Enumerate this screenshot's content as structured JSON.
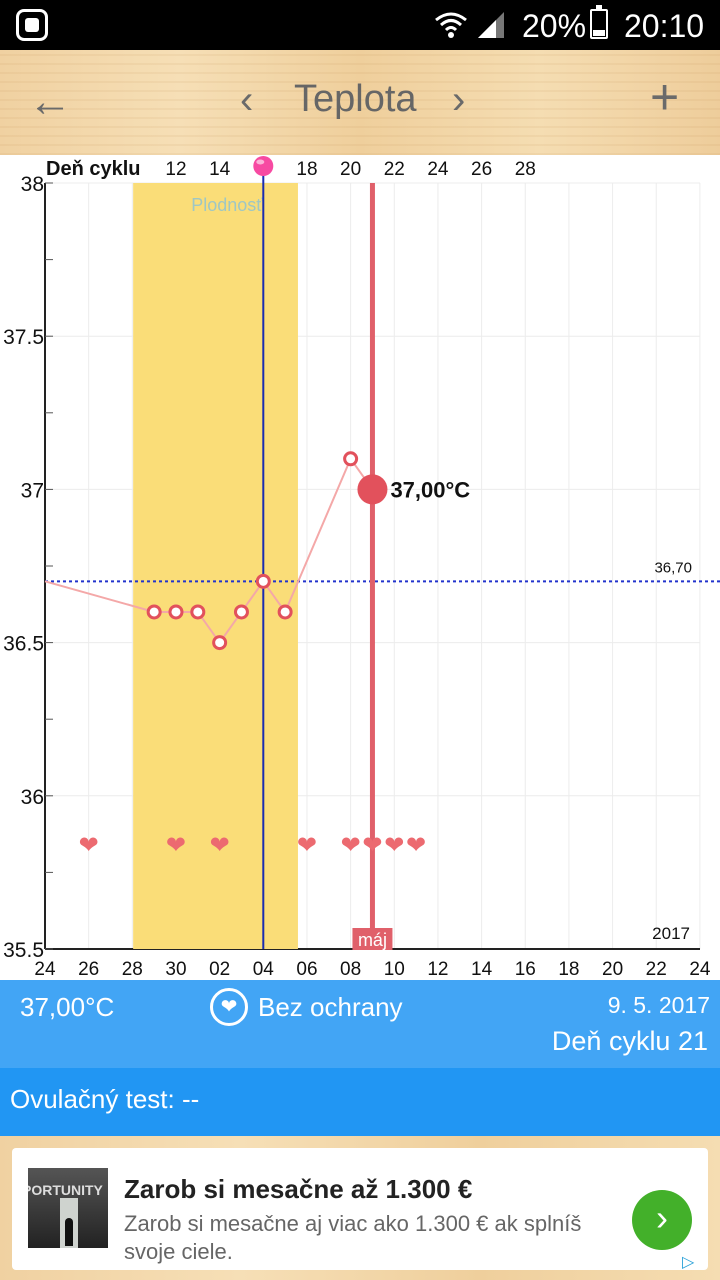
{
  "status_bar": {
    "battery": "20%",
    "time": "20:10"
  },
  "header": {
    "title": "Teplota",
    "back_icon": "arrow-left-icon",
    "prev_icon": "chevron-left-icon",
    "next_icon": "chevron-right-icon",
    "add_icon": "plus-icon"
  },
  "chart_data": {
    "type": "line",
    "top_axis_label": "Deň cyklu",
    "cycle_ticks": [
      "12",
      "14",
      "",
      "18",
      "20",
      "22",
      "24",
      "26",
      "28"
    ],
    "y_ticks": [
      "38",
      "37.5",
      "37",
      "36.5",
      "36",
      "35.5"
    ],
    "ylim": [
      35.5,
      38
    ],
    "x_ticks": [
      "24",
      "26",
      "28",
      "30",
      "02",
      "04",
      "06",
      "08",
      "10",
      "12",
      "14",
      "16",
      "18",
      "20",
      "22",
      "24"
    ],
    "fertile_label": "Plodnosť",
    "coverline_label": "36,70",
    "coverline_value": 36.7,
    "selected_label": "37,00°C",
    "selected_value": 37.0,
    "month_label": "máj",
    "year_label": "2017",
    "points": [
      {
        "day": 5,
        "value": 36.6
      },
      {
        "day": 6,
        "value": 36.6
      },
      {
        "day": 7,
        "value": 36.6
      },
      {
        "day": 8,
        "value": 36.5
      },
      {
        "day": 9,
        "value": 36.6
      },
      {
        "day": 10,
        "value": 36.7
      },
      {
        "day": 11,
        "value": 36.6
      },
      {
        "day": 14,
        "value": 37.1
      },
      {
        "day": 15,
        "value": 37.0
      }
    ],
    "heart_days": [
      -1,
      3,
      5,
      9,
      11,
      12,
      13,
      14
    ]
  },
  "info": {
    "temperature": "37,00°C",
    "protection": "Bez ochrany",
    "protection_icon": "heart-icon",
    "date": "9. 5. 2017",
    "cycle_day": "Deň cyklu 21"
  },
  "ovulation": {
    "text": "Ovulačný test: --"
  },
  "ad": {
    "thumb_text": "PORTUNITY",
    "headline": "Zarob si mesačne až 1.300 €",
    "description": "Zarob si mesačne aj viac ako 1.300 € ak splníš svoje ciele.",
    "cta_icon": "chevron-right-icon"
  }
}
